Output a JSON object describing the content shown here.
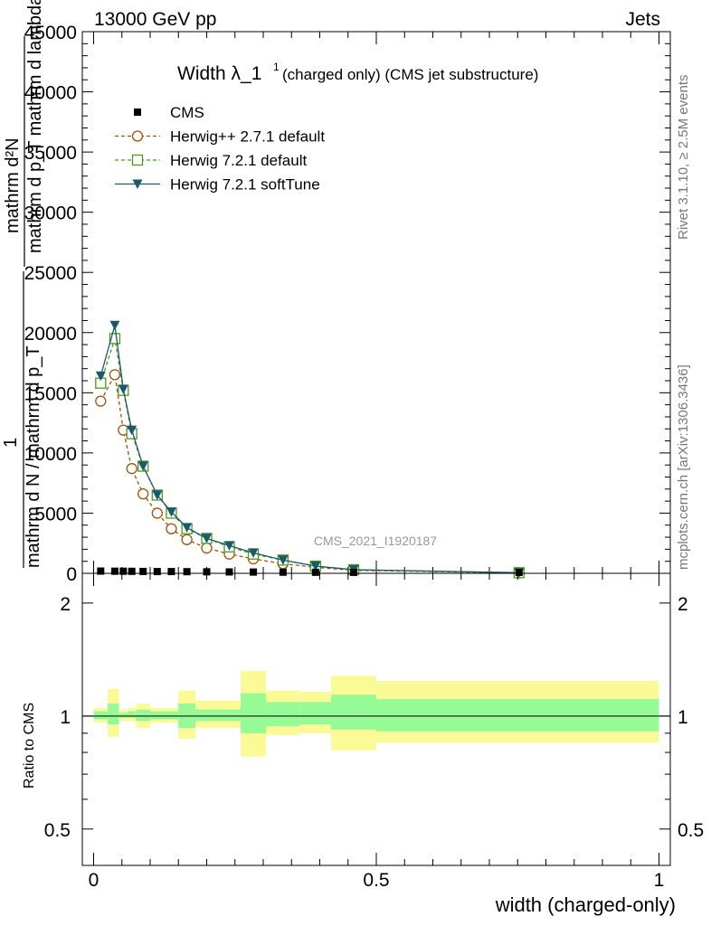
{
  "header": {
    "left": "13000 GeV pp",
    "right": "Jets",
    "side_top": "Rivet 3.1.10, ≥ 2.5M events",
    "side_bottom": "mcplots.cern.ch [arXiv:1306.3436]",
    "watermark": "CMS_2021_I1920187"
  },
  "main_panel": {
    "title_main": "Width λ_1",
    "title_sup": "1",
    "title_sub": "(charged only) (CMS jet substructure)",
    "ylabel_num": "mathrm d²N",
    "ylabel_den": "mathrm d p_T mathrm d lambda",
    "ylabel_frac": "1",
    "ylabel_frac_den": "mathrm d N / mathrm d p_T",
    "yticks": [
      "0",
      "5000",
      "10000",
      "15000",
      "20000",
      "25000",
      "30000",
      "35000",
      "40000",
      "45000"
    ]
  },
  "ratio_panel": {
    "ylabel": "Ratio to CMS",
    "yticks": [
      "0.5",
      "1",
      "2"
    ],
    "xticks": [
      "0",
      "0.5",
      "1"
    ],
    "xlabel": "width (charged-only)"
  },
  "legend": [
    {
      "label": "CMS",
      "color": "#000000",
      "marker": "square-filled",
      "line": "none"
    },
    {
      "label": "Herwig++ 2.7.1 default",
      "color": "#a0520a",
      "marker": "circle-open",
      "line": "dashed"
    },
    {
      "label": "Herwig 7.2.1 default",
      "color": "#4a9a1a",
      "marker": "square-open",
      "line": "dashed"
    },
    {
      "label": "Herwig 7.2.1 softTune",
      "color": "#1a5a6a",
      "marker": "triangle-down-filled",
      "line": "solid"
    }
  ],
  "chart_data": {
    "type": "line",
    "x_range": [
      -0.02,
      1.02
    ],
    "y_range": [
      0,
      45000
    ],
    "ratio_range": [
      0.4,
      2.4
    ],
    "ratio_scale": "log",
    "x": [
      0.0125,
      0.0375,
      0.0525,
      0.0675,
      0.0875,
      0.1125,
      0.1375,
      0.165,
      0.2,
      0.24,
      0.2825,
      0.335,
      0.3925,
      0.46,
      0.7525
    ],
    "cms": [
      110,
      100,
      100,
      90,
      80,
      70,
      70,
      60,
      50,
      40,
      30,
      20,
      10,
      5,
      2
    ],
    "series": [
      {
        "name": "Herwig++ 2.7.1 default",
        "values": [
          14300,
          16500,
          11900,
          8700,
          6600,
          5000,
          3700,
          2800,
          2100,
          1600,
          1200,
          800,
          500,
          250,
          30
        ]
      },
      {
        "name": "Herwig 7.2.1 default",
        "values": [
          15800,
          19500,
          15200,
          11600,
          8900,
          6500,
          5000,
          3700,
          2900,
          2200,
          1600,
          1100,
          600,
          300,
          50
        ]
      },
      {
        "name": "Herwig 7.2.1 softTune",
        "values": [
          16400,
          20600,
          15300,
          11900,
          8900,
          6500,
          5100,
          3800,
          2900,
          2300,
          1700,
          1100,
          600,
          300,
          50
        ]
      }
    ],
    "ratio_bands": {
      "edges": [
        0.0,
        0.025,
        0.045,
        0.06,
        0.075,
        0.1,
        0.125,
        0.15,
        0.18,
        0.22,
        0.26,
        0.305,
        0.365,
        0.42,
        0.5,
        1.0
      ],
      "yellow_lo": [
        0.96,
        0.88,
        0.97,
        0.97,
        0.93,
        0.96,
        0.96,
        0.87,
        0.93,
        0.93,
        0.78,
        0.89,
        0.9,
        0.81,
        0.85,
        0.85
      ],
      "yellow_hi": [
        1.05,
        1.18,
        1.04,
        1.05,
        1.08,
        1.05,
        1.05,
        1.17,
        1.1,
        1.1,
        1.32,
        1.17,
        1.16,
        1.28,
        1.24,
        1.24
      ],
      "green_lo": [
        0.98,
        0.95,
        0.99,
        0.99,
        0.97,
        0.98,
        0.98,
        0.93,
        0.97,
        0.97,
        0.9,
        0.94,
        0.95,
        0.92,
        0.91,
        0.91
      ],
      "green_hi": [
        1.03,
        1.08,
        1.02,
        1.03,
        1.04,
        1.03,
        1.03,
        1.08,
        1.04,
        1.04,
        1.15,
        1.09,
        1.09,
        1.14,
        1.11,
        1.11
      ]
    },
    "colors": {
      "yellow": "#fafa96",
      "green": "#96fa96"
    }
  }
}
